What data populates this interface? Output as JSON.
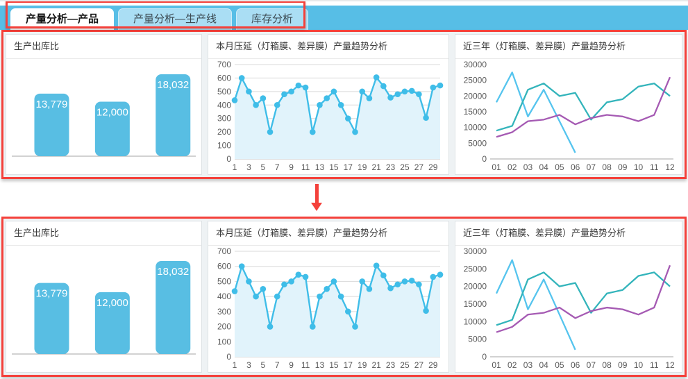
{
  "tabs": [
    {
      "label": "产量分析—产品",
      "active": true
    },
    {
      "label": "产量分析—生产线",
      "active": false
    },
    {
      "label": "库存分析",
      "active": false
    }
  ],
  "annotation": {
    "highlight_color": "#f4413b",
    "arrow_direction": "down"
  },
  "colors": {
    "topbar_blue": "#57bee6",
    "inactive_tab_blue": "#aadef4",
    "panel_background": "#ffffff",
    "row_background": "#eef2f4",
    "axis_text": "#595959"
  },
  "chart_data": [
    {
      "id": "production_outbound",
      "type": "bar",
      "title": "生产出库比",
      "values": [
        13779,
        12000,
        18032
      ],
      "value_labels": [
        "13,779",
        "12,000",
        "18,032"
      ],
      "bar_color": "#58bee3",
      "label_color": "#ffffff",
      "baseline_color": "#a6a6a6",
      "grid": false
    },
    {
      "id": "monthly_trend",
      "type": "line",
      "title": "本月压延（灯箱膜、差异膜）产量趋势分析",
      "x": [
        1,
        2,
        3,
        4,
        5,
        6,
        7,
        8,
        9,
        10,
        11,
        12,
        13,
        14,
        15,
        16,
        17,
        18,
        19,
        20,
        21,
        22,
        23,
        24,
        25,
        26,
        27,
        28,
        29,
        30
      ],
      "values": [
        435,
        600,
        500,
        400,
        450,
        200,
        400,
        480,
        500,
        545,
        530,
        200,
        400,
        450,
        500,
        400,
        300,
        200,
        500,
        450,
        605,
        540,
        455,
        480,
        500,
        505,
        480,
        305,
        530,
        545
      ],
      "ylim": [
        0,
        700
      ],
      "ytick_step": 100,
      "xtick_labels": [
        "1",
        "3",
        "5",
        "7",
        "9",
        "11",
        "13",
        "15",
        "17",
        "19",
        "21",
        "23",
        "25",
        "27",
        "29"
      ],
      "line_color": "#3fbde8",
      "fill_color": "#e1f3fb",
      "grid": true,
      "markers": true,
      "legend": "none"
    },
    {
      "id": "yearly_trend",
      "type": "line",
      "title": "近三年（灯箱膜、差异膜）产量趋势分析",
      "categories": [
        "01",
        "02",
        "03",
        "04",
        "05",
        "06",
        "07",
        "08",
        "09",
        "10",
        "11",
        "12"
      ],
      "ylim": [
        0,
        30000
      ],
      "ytick_step": 5000,
      "grid": false,
      "markers": false,
      "legend": "none",
      "axis_color": "#a6a6a6",
      "series": [
        {
          "name": "series-light-blue",
          "color": "#55c4ee",
          "values": [
            18000,
            27500,
            13500,
            22000,
            12000,
            2000,
            null,
            null,
            null,
            null,
            null,
            null
          ]
        },
        {
          "name": "series-teal",
          "color": "#33b4bb",
          "values": [
            9000,
            10500,
            22000,
            24000,
            20000,
            21000,
            12500,
            18000,
            19000,
            23000,
            24000,
            20000
          ]
        },
        {
          "name": "series-purple",
          "color": "#a55ab3",
          "values": [
            7000,
            8500,
            12000,
            12500,
            14000,
            11000,
            13000,
            14000,
            13500,
            12000,
            14000,
            26000
          ]
        }
      ]
    }
  ]
}
